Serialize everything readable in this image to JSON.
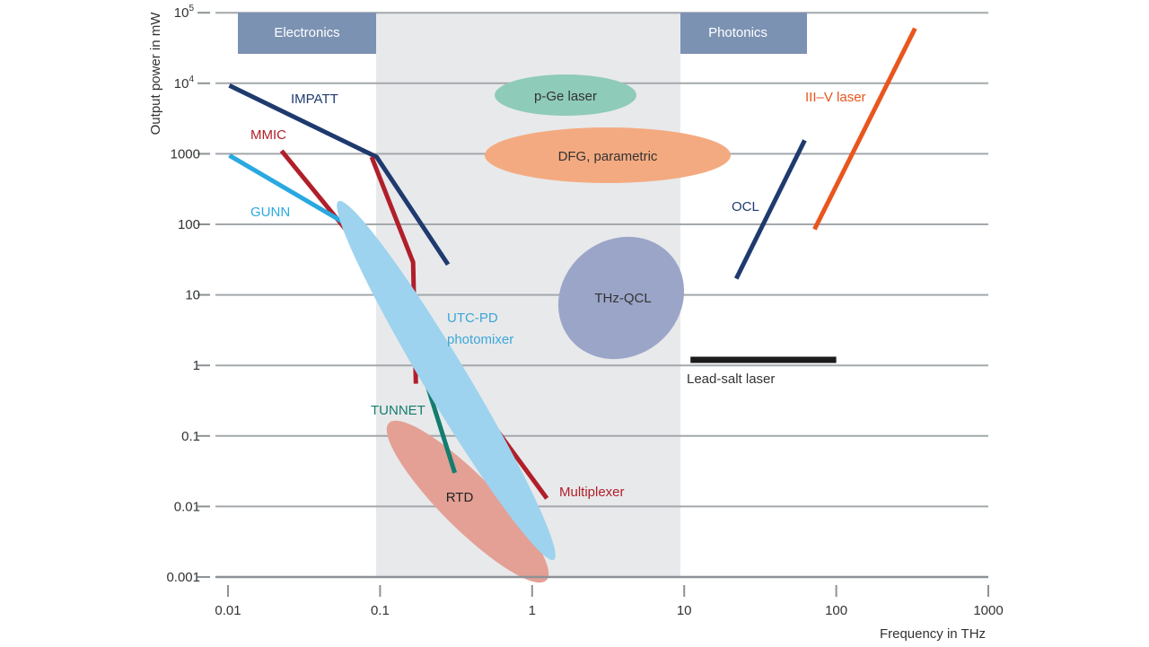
{
  "chart_data": {
    "type": "scatter",
    "title": "",
    "xlabel": "Frequency in THz",
    "ylabel": "Output power in mW",
    "xscale": "log",
    "yscale": "log",
    "xlim": [
      0.01,
      1000
    ],
    "ylim": [
      0.001,
      100000
    ],
    "grid": "horizontal",
    "x_ticks": [
      {
        "value": 0.01,
        "label": "0.01"
      },
      {
        "value": 0.1,
        "label": "0.1"
      },
      {
        "value": 1,
        "label": "1"
      },
      {
        "value": 10,
        "label": "10"
      },
      {
        "value": 100,
        "label": "100"
      },
      {
        "value": 1000,
        "label": "1000"
      }
    ],
    "y_ticks": [
      {
        "value": 0.001,
        "label": "0.001",
        "sup": ""
      },
      {
        "value": 0.01,
        "label": "0.01",
        "sup": ""
      },
      {
        "value": 0.1,
        "label": "0.1",
        "sup": ""
      },
      {
        "value": 1,
        "label": "1",
        "sup": ""
      },
      {
        "value": 10,
        "label": "10",
        "sup": ""
      },
      {
        "value": 100,
        "label": "100",
        "sup": ""
      },
      {
        "value": 1000,
        "label": "1000",
        "sup": ""
      },
      {
        "value": 10000,
        "label": "10",
        "sup": "4"
      },
      {
        "value": 100000,
        "label": "10",
        "sup": "5"
      }
    ],
    "regions": [
      {
        "name": "thz-gap",
        "x": [
          0.1,
          10
        ],
        "color": "#e8e9eb"
      }
    ],
    "region_labels": [
      {
        "name": "electronics",
        "label": "Electronics",
        "x": [
          0.012,
          0.1
        ],
        "color": "#7b92b3"
      },
      {
        "name": "photonics",
        "label": "Photonics",
        "x": [
          10,
          68
        ],
        "color": "#7b92b3"
      }
    ],
    "series": [
      {
        "name": "IMPATT",
        "kind": "line",
        "color": "#1f3a6e",
        "points": [
          [
            0.0102,
            9300
          ],
          [
            0.095,
            900
          ],
          [
            0.28,
            27
          ]
        ],
        "label": {
          "text": "IMPATT",
          "x": 0.042,
          "y": 5300
        }
      },
      {
        "name": "MMIC",
        "kind": "line",
        "color": "#b01f2a",
        "points": [
          [
            0.0225,
            1100
          ],
          [
            0.088,
            30
          ]
        ],
        "label": {
          "text": "MMIC",
          "x": 0.029,
          "y": 2050
        }
      },
      {
        "name": "MMIC-2",
        "kind": "line",
        "color": "#b01f2a",
        "points": [
          [
            0.088,
            900
          ],
          [
            0.165,
            29
          ],
          [
            0.172,
            0.55
          ]
        ],
        "label": null
      },
      {
        "name": "Multiplexer",
        "kind": "line",
        "color": "#b01f2a",
        "points": [
          [
            0.39,
            0.4
          ],
          [
            1.25,
            0.013
          ]
        ],
        "label": {
          "text": "Multiplexer",
          "x": 2.6,
          "y": 0.0125
        }
      },
      {
        "name": "GUNN",
        "kind": "line",
        "color": "#29a9e0",
        "points": [
          [
            0.0102,
            950
          ],
          [
            0.076,
            75
          ]
        ],
        "label": {
          "text": "GUNN",
          "x": 0.0305,
          "y": 125
        }
      },
      {
        "name": "TUNNET",
        "kind": "line",
        "color": "#137d6f",
        "points": [
          [
            0.2,
            0.6
          ],
          [
            0.31,
            0.03
          ]
        ],
        "label": {
          "text": "TUNNET",
          "x": 0.13,
          "y": 0.24
        }
      },
      {
        "name": "OCL",
        "kind": "line",
        "color": "#1f3a6e",
        "points": [
          [
            22,
            17
          ],
          [
            62,
            1550
          ]
        ],
        "label": {
          "text": "OCL",
          "x": 16,
          "y": 190
        }
      },
      {
        "name": "III-V laser",
        "kind": "line",
        "color": "#e8561f",
        "points": [
          [
            72,
            85
          ],
          [
            330,
            60000
          ]
        ],
        "label": {
          "text": "III–V laser",
          "x": 110,
          "y": 5300
        }
      },
      {
        "name": "Lead-salt laser",
        "kind": "line",
        "color": "#1b1b1b",
        "points": [
          [
            11,
            1.2
          ],
          [
            100,
            1.2
          ]
        ],
        "label": {
          "text": "Lead-salt laser",
          "x": 39,
          "y": 0.55
        }
      }
    ],
    "regions_ellipses": [
      {
        "name": "p-Ge laser",
        "color": "#8ecbb8",
        "center": [
          1.7,
          5300
        ],
        "label": {
          "text": "p-Ge laser",
          "color": "#333333"
        }
      },
      {
        "name": "DFG, parametric",
        "color": "#f4aa80",
        "center": [
          2.2,
          1000
        ],
        "label": {
          "text": "DFG, parametric",
          "color": "#333333"
        }
      },
      {
        "name": "THz-QCL",
        "color": "#9ba5c8",
        "center": [
          5.5,
          10
        ],
        "label": {
          "text": "THz-QCL",
          "color": "#333333"
        }
      },
      {
        "name": "UTC-PD photomixer",
        "color": "#9dd3ef",
        "center": [
          0.22,
          0.4
        ],
        "label": {
          "text": "UTC-PD",
          "text2": "photomixer",
          "color": "#3ba7d8",
          "x": 0.47,
          "y": 4.2
        }
      },
      {
        "name": "RTD",
        "color": "#e4a095",
        "center": [
          0.3,
          0.008
        ],
        "label": {
          "text": "RTD",
          "color": "#222222"
        }
      }
    ]
  }
}
